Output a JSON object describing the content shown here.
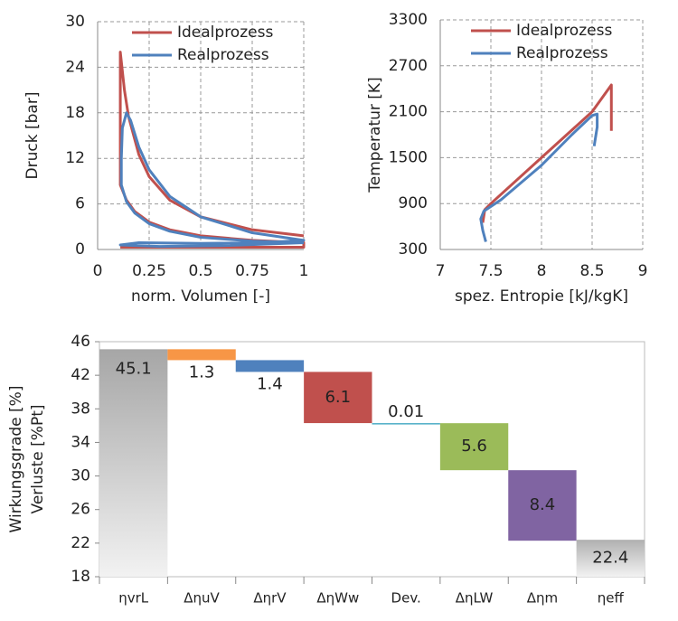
{
  "chart_data": [
    {
      "type": "line",
      "xlabel": "norm. Volumen [-]",
      "ylabel": "Druck [bar]",
      "xlim": [
        0,
        1
      ],
      "xticks": [
        0,
        0.25,
        0.5,
        0.75,
        1
      ],
      "ylim": [
        0,
        30
      ],
      "yticks": [
        0,
        6,
        12,
        18,
        24,
        30
      ],
      "grid": true,
      "legend": "top-right",
      "series": [
        {
          "name": "Idealprozess",
          "color": "#c0504d",
          "x": [
            0.11,
            1,
            1,
            0.75,
            0.5,
            0.35,
            0.25,
            0.18,
            0.14,
            0.11,
            0.11,
            0.13,
            0.15,
            0.2,
            0.25,
            0.35,
            0.5,
            0.75,
            1
          ],
          "values": [
            0.3,
            0.3,
            0.9,
            1.2,
            1.8,
            2.6,
            3.6,
            5.0,
            6.5,
            8.5,
            26,
            21,
            17.5,
            12.5,
            9.6,
            6.5,
            4.3,
            2.6,
            1.8
          ]
        },
        {
          "name": "Realprozess",
          "color": "#4f81bd",
          "x": [
            1,
            0.75,
            0.5,
            0.35,
            0.25,
            0.18,
            0.14,
            0.115,
            0.115,
            0.12,
            0.14,
            0.16,
            0.2,
            0.25,
            0.35,
            0.5,
            0.75,
            1,
            0.8,
            0.5,
            0.2,
            0.11,
            0.3,
            0.6,
            1
          ],
          "values": [
            0.9,
            1.1,
            1.6,
            2.4,
            3.4,
            4.8,
            6.3,
            8.5,
            12,
            16,
            18,
            17,
            13.5,
            10.5,
            7,
            4.3,
            2.2,
            1.2,
            0.9,
            0.8,
            0.9,
            0.6,
            0.4,
            0.5,
            0.9
          ]
        }
      ]
    },
    {
      "type": "line",
      "xlabel": "spez. Entropie [kJ/kgK]",
      "ylabel": "Temperatur [K]",
      "xlim": [
        7,
        9
      ],
      "xticks": [
        7,
        7.5,
        8,
        8.5,
        9
      ],
      "ylim": [
        300,
        3300
      ],
      "yticks": [
        300,
        900,
        1500,
        2100,
        2700,
        3300
      ],
      "grid": true,
      "legend": "top-right",
      "series": [
        {
          "name": "Idealprozess",
          "color": "#c0504d",
          "x": [
            7.42,
            7.44,
            7.5,
            8,
            8.5,
            8.69,
            8.69
          ],
          "values": [
            650,
            820,
            900,
            1500,
            2100,
            2450,
            1850
          ]
        },
        {
          "name": "Realprozess",
          "color": "#4f81bd",
          "x": [
            7.45,
            7.42,
            7.4,
            7.43,
            7.6,
            8.0,
            8.3,
            8.5,
            8.55,
            8.55,
            8.52
          ],
          "values": [
            400,
            550,
            700,
            800,
            950,
            1400,
            1800,
            2050,
            2070,
            1900,
            1650
          ]
        }
      ]
    },
    {
      "type": "waterfall",
      "ylabel": [
        "Wirkungsgrade [%]",
        "Verluste [%Pt]"
      ],
      "ylim": [
        18,
        46
      ],
      "yticks": [
        18,
        22,
        26,
        30,
        34,
        38,
        42,
        46
      ],
      "categories": [
        "ηvrL",
        "ΔηuV",
        "ΔηrV",
        "ΔηWw",
        "Dev.",
        "ΔηLW",
        "Δηm",
        "ηeff"
      ],
      "values": [
        45.1,
        1.3,
        1.4,
        6.1,
        0.01,
        5.6,
        8.4,
        22.4
      ],
      "colors": [
        "url(#gray-grad)",
        "#f79646",
        "#4f81bd",
        "#c0504d",
        "#4bacc6",
        "#9bbb59",
        "#8064a2",
        "url(#gray-grad2)"
      ],
      "value_label_colors": [
        "#222",
        "#222",
        "#222",
        "#fff",
        "#222",
        "#222",
        "#fff",
        "#222"
      ]
    }
  ]
}
